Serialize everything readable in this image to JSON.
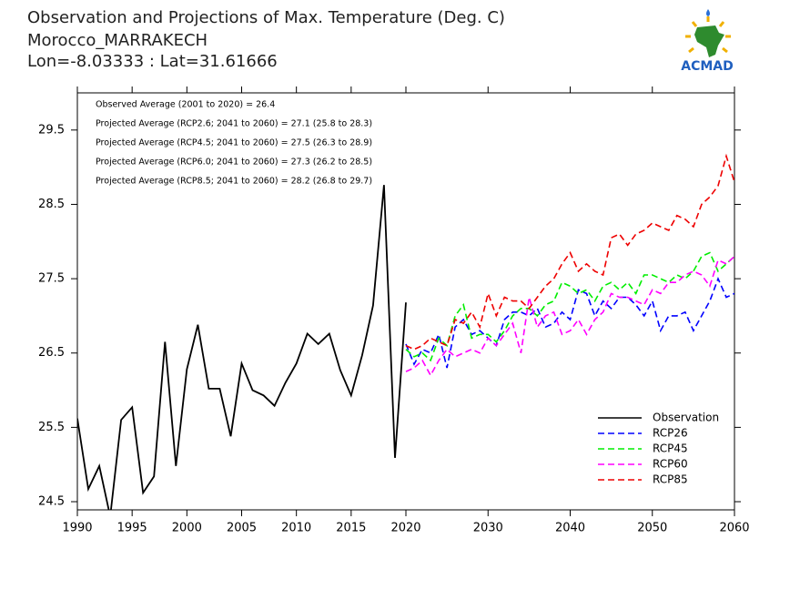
{
  "chart_data": {
    "type": "line",
    "title": [
      "Observation and Projections of Max. Temperature (Deg. C)",
      "Morocco_MARRAKECH",
      "Lon=-8.03333 : Lat=31.61666"
    ],
    "logo_text": "ACMAD",
    "annotations": [
      "Observed Average (2001 to 2020) = 26.4",
      "Projected Average (RCP2.6; 2041 to 2060) = 27.1 (25.8 to 28.3)",
      "Projected Average (RCP4.5; 2041 to 2060) = 27.5 (26.3 to 28.9)",
      "Projected Average (RCP6.0; 2041 to 2060) = 27.3 (26.2 to 28.5)",
      "Projected Average (RCP8.5; 2041 to 2060) = 28.2 (26.8 to 29.7)"
    ],
    "x": [
      1990,
      1991,
      1992,
      1993,
      1994,
      1995,
      1996,
      1997,
      1998,
      1999,
      2000,
      2001,
      2002,
      2003,
      2004,
      2005,
      2006,
      2007,
      2008,
      2009,
      2010,
      2011,
      2012,
      2013,
      2014,
      2015,
      2016,
      2017,
      2018,
      2019,
      2020,
      2021,
      2022,
      2023,
      2024,
      2025,
      2026,
      2027,
      2028,
      2029,
      2030,
      2031,
      2032,
      2033,
      2034,
      2035,
      2036,
      2037,
      2038,
      2039,
      2040,
      2041,
      2042,
      2043,
      2044,
      2045,
      2046,
      2047,
      2048,
      2049,
      2050,
      2051,
      2052,
      2053,
      2054,
      2055,
      2056,
      2057,
      2058,
      2059,
      2060
    ],
    "series": [
      {
        "name": "Observation",
        "color": "#000000",
        "dashed": false,
        "values": [
          25.62,
          24.67,
          24.98,
          24.3,
          25.6,
          25.77,
          24.62,
          24.84,
          26.65,
          24.98,
          26.28,
          26.88,
          26.02,
          26.02,
          25.38,
          26.36,
          26.0,
          25.93,
          25.79,
          26.1,
          26.36,
          26.76,
          26.62,
          26.76,
          26.27,
          25.93,
          26.47,
          27.14,
          28.76,
          25.09,
          27.18,
          null,
          null,
          null,
          null,
          null,
          null,
          null,
          null,
          null,
          null,
          null,
          null,
          null,
          null,
          null,
          null,
          null,
          null,
          null,
          null,
          null,
          null,
          null,
          null,
          null,
          null,
          null,
          null,
          null,
          null,
          null,
          null,
          null,
          null,
          null,
          null,
          null,
          null,
          null,
          null
        ]
      },
      {
        "name": "RCP26",
        "color": "#0000ff",
        "dashed": true,
        "values": [
          null,
          null,
          null,
          null,
          null,
          null,
          null,
          null,
          null,
          null,
          null,
          null,
          null,
          null,
          null,
          null,
          null,
          null,
          null,
          null,
          null,
          null,
          null,
          null,
          null,
          null,
          null,
          null,
          null,
          null,
          26.62,
          26.35,
          26.55,
          26.5,
          26.75,
          26.3,
          26.85,
          26.95,
          26.75,
          26.8,
          26.7,
          26.6,
          26.95,
          27.05,
          27.05,
          27.0,
          27.1,
          26.85,
          26.9,
          27.05,
          26.95,
          27.35,
          27.3,
          27.0,
          27.2,
          27.1,
          27.25,
          27.25,
          27.15,
          27.0,
          27.2,
          26.8,
          27.0,
          27.0,
          27.05,
          26.8,
          27.0,
          27.2,
          27.5,
          27.25,
          27.3
        ]
      },
      {
        "name": "RCP45",
        "color": "#00ee00",
        "dashed": true,
        "values": [
          null,
          null,
          null,
          null,
          null,
          null,
          null,
          null,
          null,
          null,
          null,
          null,
          null,
          null,
          null,
          null,
          null,
          null,
          null,
          null,
          null,
          null,
          null,
          null,
          null,
          null,
          null,
          null,
          null,
          null,
          26.55,
          26.45,
          26.5,
          26.4,
          26.7,
          26.6,
          27.0,
          27.15,
          26.7,
          26.75,
          26.75,
          26.65,
          26.8,
          27.0,
          27.1,
          27.1,
          27.0,
          27.15,
          27.2,
          27.45,
          27.4,
          27.3,
          27.35,
          27.2,
          27.4,
          27.45,
          27.35,
          27.45,
          27.3,
          27.55,
          27.55,
          27.5,
          27.45,
          27.55,
          27.5,
          27.6,
          27.8,
          27.85,
          27.6,
          27.7,
          27.8
        ]
      },
      {
        "name": "RCP60",
        "color": "#ff00ff",
        "dashed": true,
        "values": [
          null,
          null,
          null,
          null,
          null,
          null,
          null,
          null,
          null,
          null,
          null,
          null,
          null,
          null,
          null,
          null,
          null,
          null,
          null,
          null,
          null,
          null,
          null,
          null,
          null,
          null,
          null,
          null,
          null,
          null,
          26.25,
          26.3,
          26.4,
          26.2,
          26.4,
          26.55,
          26.45,
          26.5,
          26.55,
          26.5,
          26.7,
          26.6,
          26.75,
          26.9,
          26.5,
          27.25,
          26.85,
          27.0,
          27.05,
          26.75,
          26.8,
          26.95,
          26.75,
          26.95,
          27.05,
          27.3,
          27.25,
          27.25,
          27.2,
          27.15,
          27.35,
          27.3,
          27.45,
          27.45,
          27.55,
          27.6,
          27.55,
          27.4,
          27.75,
          27.7,
          27.8
        ]
      },
      {
        "name": "RCP85",
        "color": "#ee0000",
        "dashed": true,
        "values": [
          null,
          null,
          null,
          null,
          null,
          null,
          null,
          null,
          null,
          null,
          null,
          null,
          null,
          null,
          null,
          null,
          null,
          null,
          null,
          null,
          null,
          null,
          null,
          null,
          null,
          null,
          null,
          null,
          null,
          null,
          26.6,
          26.55,
          26.6,
          26.7,
          26.65,
          26.6,
          26.95,
          26.9,
          27.05,
          26.85,
          27.3,
          27.0,
          27.25,
          27.2,
          27.2,
          27.1,
          27.25,
          27.4,
          27.5,
          27.7,
          27.85,
          27.6,
          27.7,
          27.6,
          27.55,
          28.05,
          28.1,
          27.95,
          28.1,
          28.15,
          28.25,
          28.2,
          28.15,
          28.35,
          28.3,
          28.2,
          28.5,
          28.6,
          28.75,
          29.15,
          28.8
        ]
      }
    ],
    "xlim": [
      1990,
      2060
    ],
    "xticks": [
      1990,
      1995,
      2000,
      2005,
      2010,
      2015,
      2020,
      2030,
      2040,
      2050,
      2060
    ],
    "ylim": [
      24.39,
      30
    ],
    "yticks": [
      24.5,
      25.5,
      26.5,
      27.5,
      28.5,
      29.5
    ],
    "legend": "lower right"
  }
}
